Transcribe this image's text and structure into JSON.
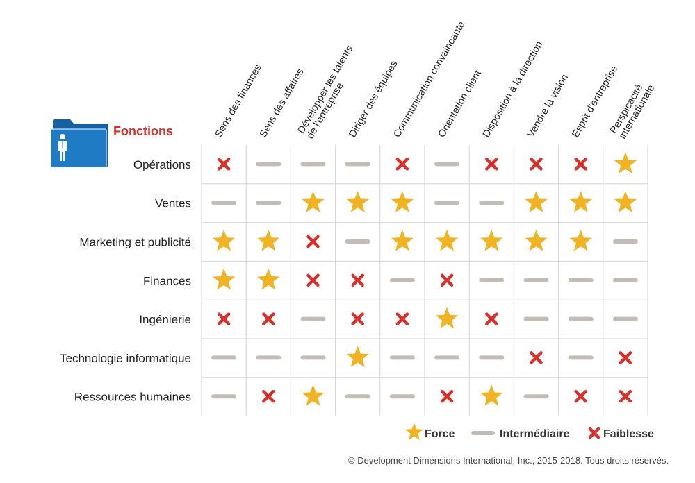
{
  "chart_data": {
    "type": "table",
    "title": "Fonctions",
    "columns": [
      [
        "Sens des finances"
      ],
      [
        "Sens des affaires"
      ],
      [
        "Développer les talents",
        "de l'entreprise"
      ],
      [
        "Diriger des équipes"
      ],
      [
        "Communication convaincante"
      ],
      [
        "Orientation client"
      ],
      [
        "Disposition à la direction"
      ],
      [
        "Vendre la vision"
      ],
      [
        "Esprit d'entreprise"
      ],
      [
        "Perspicacité",
        "internationale"
      ]
    ],
    "rows": [
      "Opérations",
      "Ventes",
      "Marketing et publicité",
      "Finances",
      "Ingénierie",
      "Technologie informatique",
      "Ressources humaines"
    ],
    "values": [
      [
        "Faiblesse",
        "Intermédiaire",
        "Intermédiaire",
        "Intermédiaire",
        "Faiblesse",
        "Intermédiaire",
        "Faiblesse",
        "Faiblesse",
        "Faiblesse",
        "Force"
      ],
      [
        "Intermédiaire",
        "Intermédiaire",
        "Force",
        "Force",
        "Force",
        "Intermédiaire",
        "Intermédiaire",
        "Force",
        "Force",
        "Force"
      ],
      [
        "Force",
        "Force",
        "Faiblesse",
        "Intermédiaire",
        "Force",
        "Force",
        "Force",
        "Force",
        "Force",
        "Intermédiaire"
      ],
      [
        "Force",
        "Force",
        "Faiblesse",
        "Faiblesse",
        "Intermédiaire",
        "Faiblesse",
        "Intermédiaire",
        "Intermédiaire",
        "Intermédiaire",
        "Intermédiaire"
      ],
      [
        "Faiblesse",
        "Faiblesse",
        "Intermédiaire",
        "Faiblesse",
        "Faiblesse",
        "Force",
        "Faiblesse",
        "Intermédiaire",
        "Intermédiaire",
        "Intermédiaire"
      ],
      [
        "Intermédiaire",
        "Intermédiaire",
        "Intermédiaire",
        "Force",
        "Intermédiaire",
        "Intermédiaire",
        "Intermédiaire",
        "Faiblesse",
        "Intermédiaire",
        "Faiblesse"
      ],
      [
        "Intermédiaire",
        "Faiblesse",
        "Force",
        "Intermédiaire",
        "Intermédiaire",
        "Faiblesse",
        "Force",
        "Intermédiaire",
        "Faiblesse",
        "Faiblesse"
      ]
    ],
    "legend": [
      {
        "level": "Force",
        "label": "Force",
        "icon": "star-icon"
      },
      {
        "level": "Intermédiaire",
        "label": "Intermédiaire",
        "icon": "dash-icon"
      },
      {
        "level": "Faiblesse",
        "label": "Faiblesse",
        "icon": "cross-icon"
      }
    ],
    "legend_position": "bottom-right",
    "grid": true
  },
  "footer": "© Development Dimensions International, Inc., 2015-2018. Tous droits réservés.",
  "colors": {
    "title": "#d8312b",
    "star": "#f0b323",
    "dash": "#c4bdb6",
    "cross": "#d8312b",
    "grid": "#d4d4d4",
    "folder": "#1f7bc4",
    "folder_back": "#175f9e"
  }
}
